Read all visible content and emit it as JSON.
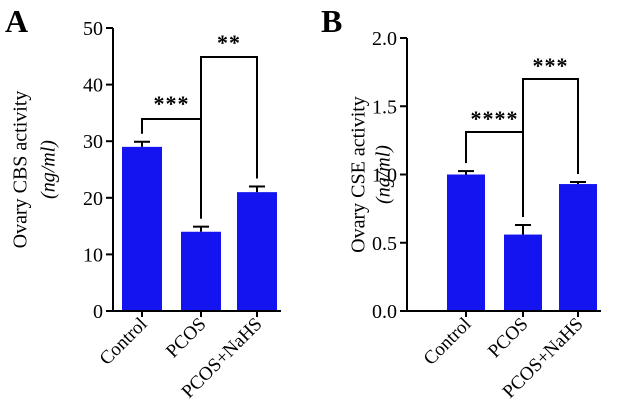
{
  "colors": {
    "bar": "#1414f0",
    "axis": "#000000",
    "background": "#ffffff"
  },
  "chart_data": [
    {
      "type": "bar",
      "panel": "A",
      "categories": [
        "Control",
        "PCOS",
        "PCOS+NaHS"
      ],
      "values": [
        29,
        14,
        21
      ],
      "errors": [
        0.9,
        0.9,
        1.0
      ],
      "ylabel": "Ovary CBS activity",
      "ylabel_unit": "(ng/ml)",
      "ylim": [
        0,
        50
      ],
      "yticks": [
        0,
        10,
        20,
        30,
        40,
        50
      ],
      "tick_labels": [
        "0",
        "10",
        "20",
        "30",
        "40",
        "50"
      ],
      "significance": [
        {
          "from": 0,
          "to": 1,
          "label": "***"
        },
        {
          "from": 1,
          "to": 2,
          "label": "**"
        }
      ]
    },
    {
      "type": "bar",
      "panel": "B",
      "categories": [
        "Control",
        "PCOS",
        "PCOS+NaHS"
      ],
      "values": [
        1.0,
        0.56,
        0.93
      ],
      "errors": [
        0.025,
        0.07,
        0.015
      ],
      "ylabel": "Ovary CSE activity",
      "ylabel_unit": "(ng/ml)",
      "ylim": [
        0,
        2.0
      ],
      "yticks": [
        0,
        0.5,
        1.0,
        1.5,
        2.0
      ],
      "tick_labels": [
        "0.0",
        "0.5",
        "1.0",
        "1.5",
        "2.0"
      ],
      "significance": [
        {
          "from": 0,
          "to": 1,
          "label": "****"
        },
        {
          "from": 1,
          "to": 2,
          "label": "***"
        }
      ]
    }
  ]
}
